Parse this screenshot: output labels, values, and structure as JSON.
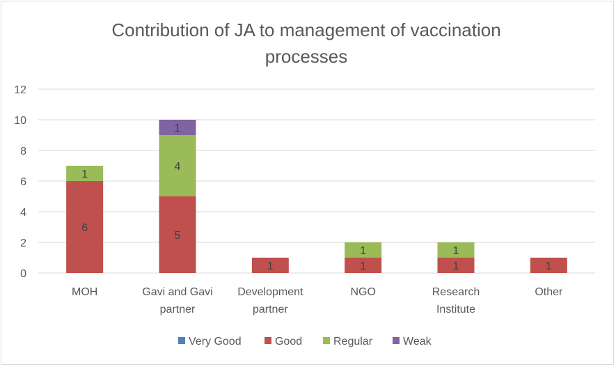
{
  "chart_data": {
    "type": "bar",
    "stacked": true,
    "title_lines": [
      "Contribution of JA to management of vaccination",
      "processes"
    ],
    "categories": [
      [
        "MOH"
      ],
      [
        "Gavi and Gavi",
        "partner"
      ],
      [
        "Development",
        "partner"
      ],
      [
        "NGO"
      ],
      [
        "Research",
        "Institute"
      ],
      [
        "Other"
      ]
    ],
    "series": [
      {
        "name": "Very Good",
        "color": "#4f81bd",
        "values": [
          0,
          0,
          0,
          0,
          0,
          0
        ]
      },
      {
        "name": "Good",
        "color": "#c0504d",
        "values": [
          6,
          5,
          1,
          1,
          1,
          1
        ]
      },
      {
        "name": "Regular",
        "color": "#9bbb59",
        "values": [
          1,
          4,
          0,
          1,
          1,
          0
        ]
      },
      {
        "name": "Weak",
        "color": "#8064a2",
        "values": [
          0,
          1,
          0,
          0,
          0,
          0
        ]
      }
    ],
    "ylim": [
      0,
      12
    ],
    "yticks": [
      "0",
      "2",
      "4",
      "6",
      "8",
      "10",
      "12"
    ],
    "grid": true,
    "legend_position": "bottom"
  }
}
